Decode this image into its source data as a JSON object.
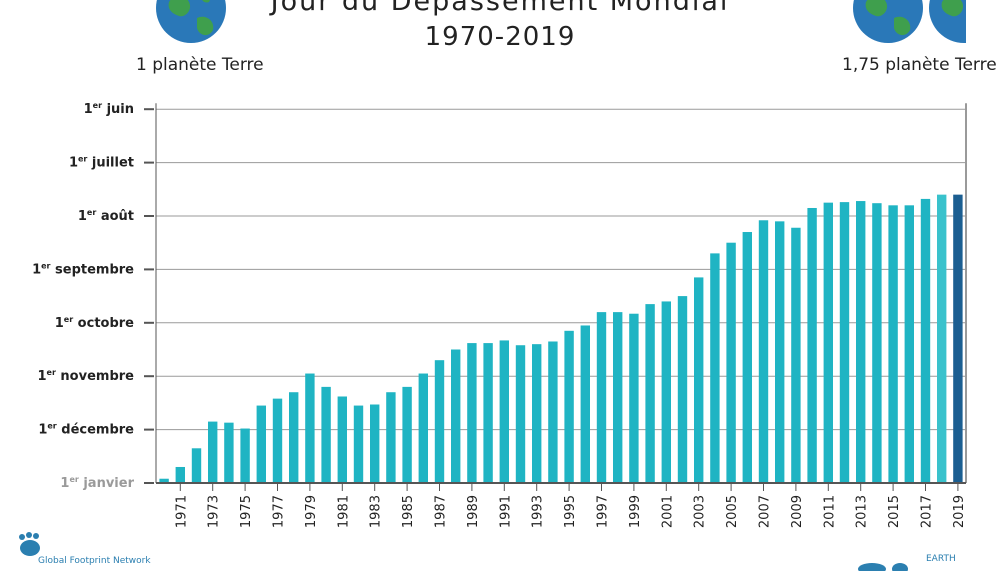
{
  "header": {
    "title": "Jour du Dépassement Mondial",
    "subtitle": "1970-2019",
    "left_label": "1 planète Terre",
    "right_label": "1,75 planète Terre"
  },
  "footer": {
    "left_logo_text": "Global Footprint Network",
    "right_logo_text": "EARTH"
  },
  "colors": {
    "bar": "#1fb4c3",
    "bar_2018": "#39c2cc",
    "bar_2019": "#1b5e91",
    "grid": "#9a9a9a",
    "axis": "#555555",
    "globe_ocean": "#2a78b8",
    "globe_land": "#3f9f4d"
  },
  "chart_data": {
    "type": "bar",
    "title": "Jour du Dépassement Mondial",
    "subtitle": "1970-2019",
    "xlabel": "",
    "ylabel": "",
    "x": [
      1970,
      1971,
      1972,
      1973,
      1974,
      1975,
      1976,
      1977,
      1978,
      1979,
      1980,
      1981,
      1982,
      1983,
      1984,
      1985,
      1986,
      1987,
      1988,
      1989,
      1990,
      1991,
      1992,
      1993,
      1994,
      1995,
      1996,
      1997,
      1998,
      1999,
      2000,
      2001,
      2002,
      2003,
      2004,
      2005,
      2006,
      2007,
      2008,
      2009,
      2010,
      2011,
      2012,
      2013,
      2014,
      2015,
      2016,
      2017,
      2018,
      2019
    ],
    "x_tick_labels": [
      "1971",
      "1973",
      "1975",
      "1977",
      "1979",
      "1981",
      "1983",
      "1985",
      "1987",
      "1989",
      "1991",
      "1993",
      "1995",
      "1997",
      "1999",
      "2001",
      "2003",
      "2005",
      "2007",
      "2009",
      "2011",
      "2013",
      "2015",
      "2017",
      "2019"
    ],
    "y_tick_labels": [
      {
        "sup": "er",
        "text": "juin"
      },
      {
        "sup": "er",
        "text": "juillet"
      },
      {
        "sup": "er",
        "text": "août"
      },
      {
        "sup": "er",
        "text": "septembre"
      },
      {
        "sup": "er",
        "text": "octobre"
      },
      {
        "sup": "er",
        "text": "novembre"
      },
      {
        "sup": "er",
        "text": "décembre"
      },
      {
        "sup": "er",
        "text": "janvier"
      }
    ],
    "y_tick_prefix": "1",
    "y_unit": "months before 1 January (0 = 1er janvier, 7 = 1er juin)",
    "ylim": [
      0,
      7
    ],
    "values": [
      0.08,
      0.3,
      0.65,
      1.15,
      1.13,
      1.02,
      1.45,
      1.58,
      1.7,
      2.05,
      1.8,
      1.62,
      1.45,
      1.47,
      1.7,
      1.8,
      2.05,
      2.3,
      2.5,
      2.62,
      2.62,
      2.67,
      2.58,
      2.6,
      2.65,
      2.85,
      2.95,
      3.2,
      3.2,
      3.17,
      3.35,
      3.4,
      3.5,
      3.85,
      4.3,
      4.5,
      4.7,
      4.92,
      4.9,
      4.78,
      5.15,
      5.25,
      5.26,
      5.28,
      5.24,
      5.2,
      5.2,
      5.32,
      5.4,
      5.4
    ],
    "highlight": {
      "2018": "bar_2018",
      "2019": "bar_2019"
    }
  }
}
